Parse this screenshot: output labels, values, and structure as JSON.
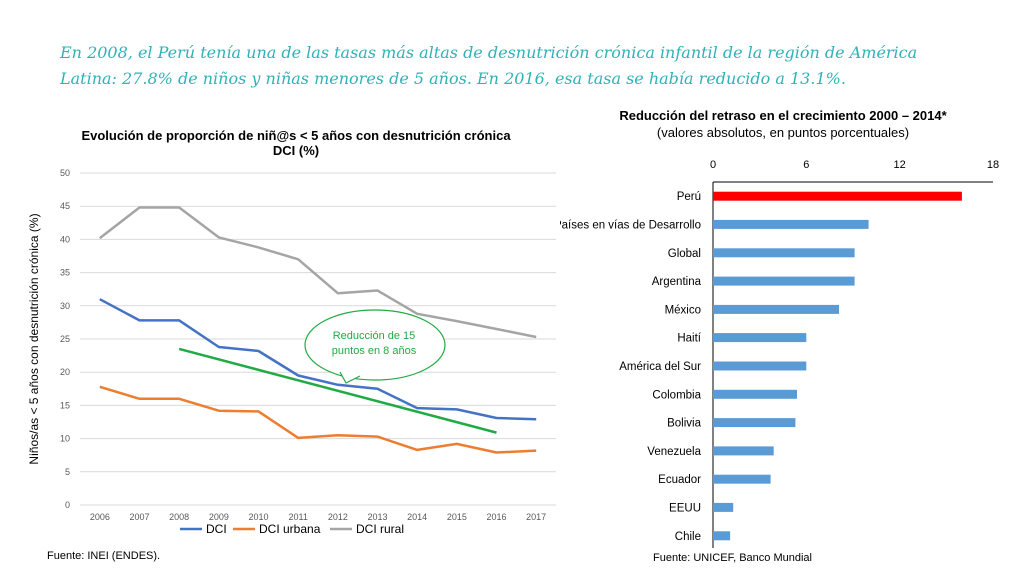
{
  "headline": "En 2008, el Perú tenía una de las tasas más altas de desnutrición crónica infantil de la región de América Latina: 27.8% de niños y niñas menores de 5 años. En 2016, esa tasa se había reducido a 13.1%.",
  "chart_data": [
    {
      "type": "line",
      "title": "Evolución de proporción de niñ@s < 5 años con desnutrición crónica",
      "title_line2": "DCI (%)",
      "xlabel": "",
      "ylabel": "Niños/as < 5 años con desnutrición crónica (%)",
      "x": [
        "2006",
        "2007",
        "2008",
        "2009",
        "2010",
        "2011",
        "2012",
        "2013",
        "2014",
        "2015",
        "2016",
        "2017"
      ],
      "yticks": [
        0,
        5,
        10,
        15,
        20,
        25,
        30,
        35,
        40,
        45,
        50
      ],
      "ylim": [
        0,
        50
      ],
      "grid": true,
      "legend": "bottom",
      "series": [
        {
          "name": "DCI",
          "color": "#4472c4",
          "values": [
            31.0,
            27.8,
            27.8,
            23.8,
            23.2,
            19.5,
            18.1,
            17.5,
            14.6,
            14.4,
            13.1,
            12.9
          ]
        },
        {
          "name": "DCI urbana",
          "color": "#ed7d31",
          "values": [
            17.8,
            16.0,
            16.0,
            14.2,
            14.1,
            10.1,
            10.5,
            10.3,
            8.3,
            9.2,
            7.9,
            8.2
          ]
        },
        {
          "name": "DCI rural",
          "color": "#a5a5a5",
          "values": [
            40.2,
            44.8,
            44.8,
            40.3,
            38.8,
            37.0,
            31.9,
            32.3,
            28.8,
            27.7,
            26.5,
            25.3
          ]
        }
      ],
      "trend": {
        "color": "#22aa44",
        "x": [
          "2008",
          "2016"
        ],
        "values": [
          23.5,
          10.9
        ]
      },
      "annotation": {
        "line1": "Reducción de 15",
        "line2": "puntos en 8 años",
        "color": "#22aa44"
      },
      "source": "Fuente: INEI (ENDES)."
    },
    {
      "type": "bar",
      "orientation": "horizontal",
      "title": "Reducción del retraso en el crecimiento 2000 – 2014*",
      "subtitle": "(valores absolutos, en puntos porcentuales)",
      "xticks": [
        0,
        6,
        12,
        18
      ],
      "xlim": [
        0,
        18
      ],
      "categories": [
        "Perú",
        "Países en vías de Desarrollo",
        "Global",
        "Argentina",
        "México",
        "Haití",
        "América del Sur",
        "Colombia",
        "Bolivia",
        "Venezuela",
        "Ecuador",
        "EEUU",
        "Chile"
      ],
      "values": [
        16.0,
        10.0,
        9.1,
        9.1,
        8.1,
        6.0,
        6.0,
        5.4,
        5.3,
        3.9,
        3.7,
        1.3,
        1.1
      ],
      "colors": [
        "#ff0000",
        "#5b9bd5",
        "#5b9bd5",
        "#5b9bd5",
        "#5b9bd5",
        "#5b9bd5",
        "#5b9bd5",
        "#5b9bd5",
        "#5b9bd5",
        "#5b9bd5",
        "#5b9bd5",
        "#5b9bd5",
        "#5b9bd5"
      ],
      "source": "Fuente: UNICEF, Banco Mundial"
    }
  ]
}
